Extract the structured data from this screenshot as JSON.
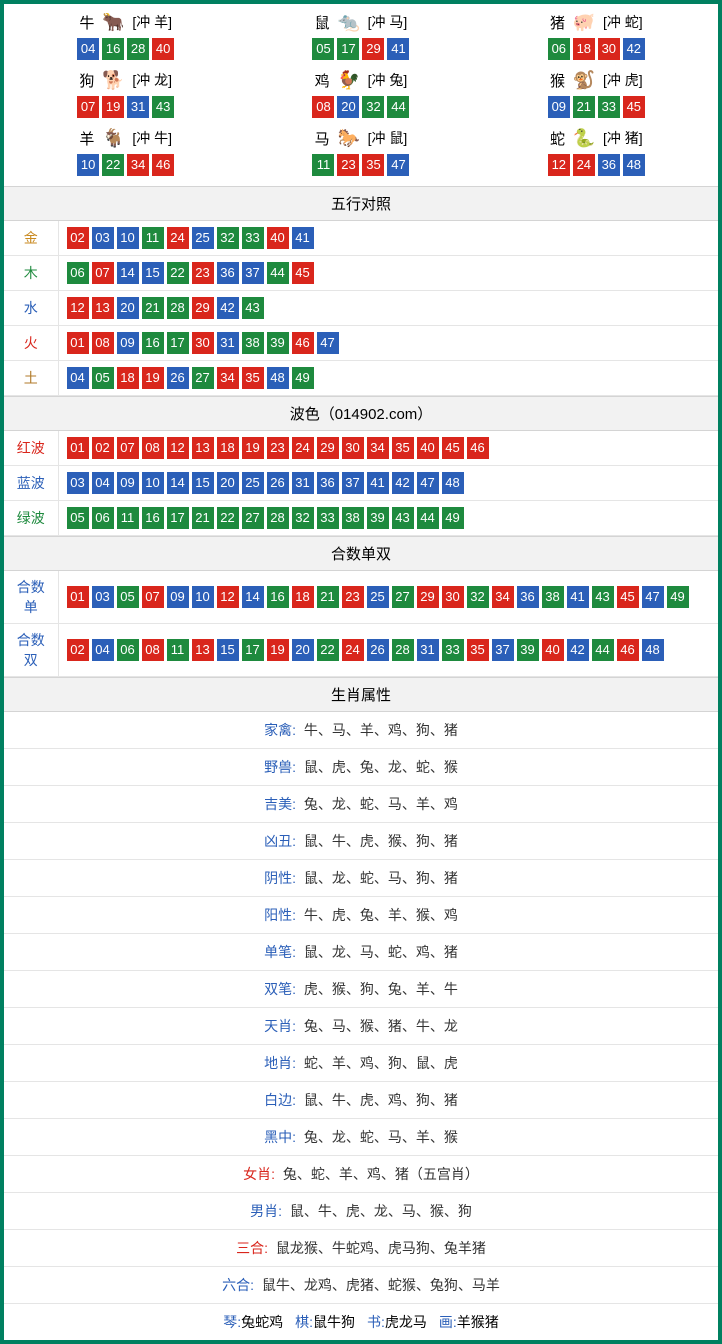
{
  "colors": {
    "red": "#d9261c",
    "blue": "#2b5fb8",
    "green": "#1e8a3e",
    "frame": "#008060",
    "header_bg": "#f2f2f2",
    "border": "#d4d4d4"
  },
  "zodiac": [
    {
      "name": "牛",
      "icon": "🐂",
      "icon_color": "#c94a3b",
      "conflict": "[冲 羊]",
      "nums": [
        {
          "v": "04",
          "c": "blue"
        },
        {
          "v": "16",
          "c": "green"
        },
        {
          "v": "28",
          "c": "green"
        },
        {
          "v": "40",
          "c": "red"
        }
      ]
    },
    {
      "name": "鼠",
      "icon": "🐀",
      "icon_color": "#4aa8d8",
      "conflict": "[冲 马]",
      "nums": [
        {
          "v": "05",
          "c": "green"
        },
        {
          "v": "17",
          "c": "green"
        },
        {
          "v": "29",
          "c": "red"
        },
        {
          "v": "41",
          "c": "blue"
        }
      ]
    },
    {
      "name": "猪",
      "icon": "🐖",
      "icon_color": "#e58aa0",
      "conflict": "[冲 蛇]",
      "nums": [
        {
          "v": "06",
          "c": "green"
        },
        {
          "v": "18",
          "c": "red"
        },
        {
          "v": "30",
          "c": "red"
        },
        {
          "v": "42",
          "c": "blue"
        }
      ]
    },
    {
      "name": "狗",
      "icon": "🐕",
      "icon_color": "#6aa6e0",
      "conflict": "[冲 龙]",
      "nums": [
        {
          "v": "07",
          "c": "red"
        },
        {
          "v": "19",
          "c": "red"
        },
        {
          "v": "31",
          "c": "blue"
        },
        {
          "v": "43",
          "c": "green"
        }
      ]
    },
    {
      "name": "鸡",
      "icon": "🐓",
      "icon_color": "#e0a030",
      "conflict": "[冲 兔]",
      "nums": [
        {
          "v": "08",
          "c": "red"
        },
        {
          "v": "20",
          "c": "blue"
        },
        {
          "v": "32",
          "c": "green"
        },
        {
          "v": "44",
          "c": "green"
        }
      ]
    },
    {
      "name": "猴",
      "icon": "🐒",
      "icon_color": "#c96a3b",
      "conflict": "[冲 虎]",
      "nums": [
        {
          "v": "09",
          "c": "blue"
        },
        {
          "v": "21",
          "c": "green"
        },
        {
          "v": "33",
          "c": "green"
        },
        {
          "v": "45",
          "c": "red"
        }
      ]
    },
    {
      "name": "羊",
      "icon": "🐐",
      "icon_color": "#d8b050",
      "conflict": "[冲 牛]",
      "nums": [
        {
          "v": "10",
          "c": "blue"
        },
        {
          "v": "22",
          "c": "green"
        },
        {
          "v": "34",
          "c": "red"
        },
        {
          "v": "46",
          "c": "red"
        }
      ]
    },
    {
      "name": "马",
      "icon": "🐎",
      "icon_color": "#c94a3b",
      "conflict": "[冲 鼠]",
      "nums": [
        {
          "v": "11",
          "c": "green"
        },
        {
          "v": "23",
          "c": "red"
        },
        {
          "v": "35",
          "c": "red"
        },
        {
          "v": "47",
          "c": "blue"
        }
      ]
    },
    {
      "name": "蛇",
      "icon": "🐍",
      "icon_color": "#3aa04a",
      "conflict": "[冲 猪]",
      "nums": [
        {
          "v": "12",
          "c": "red"
        },
        {
          "v": "24",
          "c": "red"
        },
        {
          "v": "36",
          "c": "blue"
        },
        {
          "v": "48",
          "c": "blue"
        }
      ]
    }
  ],
  "section_wuxing": "五行对照",
  "wuxing": [
    {
      "label": "金",
      "color": "#c98a20",
      "nums": [
        {
          "v": "02",
          "c": "red"
        },
        {
          "v": "03",
          "c": "blue"
        },
        {
          "v": "10",
          "c": "blue"
        },
        {
          "v": "11",
          "c": "green"
        },
        {
          "v": "24",
          "c": "red"
        },
        {
          "v": "25",
          "c": "blue"
        },
        {
          "v": "32",
          "c": "green"
        },
        {
          "v": "33",
          "c": "green"
        },
        {
          "v": "40",
          "c": "red"
        },
        {
          "v": "41",
          "c": "blue"
        }
      ]
    },
    {
      "label": "木",
      "color": "#1e8a3e",
      "nums": [
        {
          "v": "06",
          "c": "green"
        },
        {
          "v": "07",
          "c": "red"
        },
        {
          "v": "14",
          "c": "blue"
        },
        {
          "v": "15",
          "c": "blue"
        },
        {
          "v": "22",
          "c": "green"
        },
        {
          "v": "23",
          "c": "red"
        },
        {
          "v": "36",
          "c": "blue"
        },
        {
          "v": "37",
          "c": "blue"
        },
        {
          "v": "44",
          "c": "green"
        },
        {
          "v": "45",
          "c": "red"
        }
      ]
    },
    {
      "label": "水",
      "color": "#2b5fb8",
      "nums": [
        {
          "v": "12",
          "c": "red"
        },
        {
          "v": "13",
          "c": "red"
        },
        {
          "v": "20",
          "c": "blue"
        },
        {
          "v": "21",
          "c": "green"
        },
        {
          "v": "28",
          "c": "green"
        },
        {
          "v": "29",
          "c": "red"
        },
        {
          "v": "42",
          "c": "blue"
        },
        {
          "v": "43",
          "c": "green"
        }
      ]
    },
    {
      "label": "火",
      "color": "#d9261c",
      "nums": [
        {
          "v": "01",
          "c": "red"
        },
        {
          "v": "08",
          "c": "red"
        },
        {
          "v": "09",
          "c": "blue"
        },
        {
          "v": "16",
          "c": "green"
        },
        {
          "v": "17",
          "c": "green"
        },
        {
          "v": "30",
          "c": "red"
        },
        {
          "v": "31",
          "c": "blue"
        },
        {
          "v": "38",
          "c": "green"
        },
        {
          "v": "39",
          "c": "green"
        },
        {
          "v": "46",
          "c": "red"
        },
        {
          "v": "47",
          "c": "blue"
        }
      ]
    },
    {
      "label": "土",
      "color": "#b07a2a",
      "nums": [
        {
          "v": "04",
          "c": "blue"
        },
        {
          "v": "05",
          "c": "green"
        },
        {
          "v": "18",
          "c": "red"
        },
        {
          "v": "19",
          "c": "red"
        },
        {
          "v": "26",
          "c": "blue"
        },
        {
          "v": "27",
          "c": "green"
        },
        {
          "v": "34",
          "c": "red"
        },
        {
          "v": "35",
          "c": "red"
        },
        {
          "v": "48",
          "c": "blue"
        },
        {
          "v": "49",
          "c": "green"
        }
      ]
    }
  ],
  "section_bose": "波色（014902.com）",
  "bose": [
    {
      "label": "红波",
      "color": "#d9261c",
      "nums": [
        {
          "v": "01",
          "c": "red"
        },
        {
          "v": "02",
          "c": "red"
        },
        {
          "v": "07",
          "c": "red"
        },
        {
          "v": "08",
          "c": "red"
        },
        {
          "v": "12",
          "c": "red"
        },
        {
          "v": "13",
          "c": "red"
        },
        {
          "v": "18",
          "c": "red"
        },
        {
          "v": "19",
          "c": "red"
        },
        {
          "v": "23",
          "c": "red"
        },
        {
          "v": "24",
          "c": "red"
        },
        {
          "v": "29",
          "c": "red"
        },
        {
          "v": "30",
          "c": "red"
        },
        {
          "v": "34",
          "c": "red"
        },
        {
          "v": "35",
          "c": "red"
        },
        {
          "v": "40",
          "c": "red"
        },
        {
          "v": "45",
          "c": "red"
        },
        {
          "v": "46",
          "c": "red"
        }
      ]
    },
    {
      "label": "蓝波",
      "color": "#2b5fb8",
      "nums": [
        {
          "v": "03",
          "c": "blue"
        },
        {
          "v": "04",
          "c": "blue"
        },
        {
          "v": "09",
          "c": "blue"
        },
        {
          "v": "10",
          "c": "blue"
        },
        {
          "v": "14",
          "c": "blue"
        },
        {
          "v": "15",
          "c": "blue"
        },
        {
          "v": "20",
          "c": "blue"
        },
        {
          "v": "25",
          "c": "blue"
        },
        {
          "v": "26",
          "c": "blue"
        },
        {
          "v": "31",
          "c": "blue"
        },
        {
          "v": "36",
          "c": "blue"
        },
        {
          "v": "37",
          "c": "blue"
        },
        {
          "v": "41",
          "c": "blue"
        },
        {
          "v": "42",
          "c": "blue"
        },
        {
          "v": "47",
          "c": "blue"
        },
        {
          "v": "48",
          "c": "blue"
        }
      ]
    },
    {
      "label": "绿波",
      "color": "#1e8a3e",
      "nums": [
        {
          "v": "05",
          "c": "green"
        },
        {
          "v": "06",
          "c": "green"
        },
        {
          "v": "11",
          "c": "green"
        },
        {
          "v": "16",
          "c": "green"
        },
        {
          "v": "17",
          "c": "green"
        },
        {
          "v": "21",
          "c": "green"
        },
        {
          "v": "22",
          "c": "green"
        },
        {
          "v": "27",
          "c": "green"
        },
        {
          "v": "28",
          "c": "green"
        },
        {
          "v": "32",
          "c": "green"
        },
        {
          "v": "33",
          "c": "green"
        },
        {
          "v": "38",
          "c": "green"
        },
        {
          "v": "39",
          "c": "green"
        },
        {
          "v": "43",
          "c": "green"
        },
        {
          "v": "44",
          "c": "green"
        },
        {
          "v": "49",
          "c": "green"
        }
      ]
    }
  ],
  "section_heshu": "合数单双",
  "heshu": [
    {
      "label": "合数单",
      "color": "#2b5fb8",
      "nums": [
        {
          "v": "01",
          "c": "red"
        },
        {
          "v": "03",
          "c": "blue"
        },
        {
          "v": "05",
          "c": "green"
        },
        {
          "v": "07",
          "c": "red"
        },
        {
          "v": "09",
          "c": "blue"
        },
        {
          "v": "10",
          "c": "blue"
        },
        {
          "v": "12",
          "c": "red"
        },
        {
          "v": "14",
          "c": "blue"
        },
        {
          "v": "16",
          "c": "green"
        },
        {
          "v": "18",
          "c": "red"
        },
        {
          "v": "21",
          "c": "green"
        },
        {
          "v": "23",
          "c": "red"
        },
        {
          "v": "25",
          "c": "blue"
        },
        {
          "v": "27",
          "c": "green"
        },
        {
          "v": "29",
          "c": "red"
        },
        {
          "v": "30",
          "c": "red"
        },
        {
          "v": "32",
          "c": "green"
        },
        {
          "v": "34",
          "c": "red"
        },
        {
          "v": "36",
          "c": "blue"
        },
        {
          "v": "38",
          "c": "green"
        },
        {
          "v": "41",
          "c": "blue"
        },
        {
          "v": "43",
          "c": "green"
        },
        {
          "v": "45",
          "c": "red"
        },
        {
          "v": "47",
          "c": "blue"
        },
        {
          "v": "49",
          "c": "green"
        }
      ]
    },
    {
      "label": "合数双",
      "color": "#2b5fb8",
      "nums": [
        {
          "v": "02",
          "c": "red"
        },
        {
          "v": "04",
          "c": "blue"
        },
        {
          "v": "06",
          "c": "green"
        },
        {
          "v": "08",
          "c": "red"
        },
        {
          "v": "11",
          "c": "green"
        },
        {
          "v": "13",
          "c": "red"
        },
        {
          "v": "15",
          "c": "blue"
        },
        {
          "v": "17",
          "c": "green"
        },
        {
          "v": "19",
          "c": "red"
        },
        {
          "v": "20",
          "c": "blue"
        },
        {
          "v": "22",
          "c": "green"
        },
        {
          "v": "24",
          "c": "red"
        },
        {
          "v": "26",
          "c": "blue"
        },
        {
          "v": "28",
          "c": "green"
        },
        {
          "v": "31",
          "c": "blue"
        },
        {
          "v": "33",
          "c": "green"
        },
        {
          "v": "35",
          "c": "red"
        },
        {
          "v": "37",
          "c": "blue"
        },
        {
          "v": "39",
          "c": "green"
        },
        {
          "v": "40",
          "c": "red"
        },
        {
          "v": "42",
          "c": "blue"
        },
        {
          "v": "44",
          "c": "green"
        },
        {
          "v": "46",
          "c": "red"
        },
        {
          "v": "48",
          "c": "blue"
        }
      ]
    }
  ],
  "section_shuxing": "生肖属性",
  "attrs": [
    {
      "label": "家禽:",
      "val": "牛、马、羊、鸡、狗、猪"
    },
    {
      "label": "野兽:",
      "val": "鼠、虎、兔、龙、蛇、猴"
    },
    {
      "label": "吉美:",
      "val": "兔、龙、蛇、马、羊、鸡"
    },
    {
      "label": "凶丑:",
      "val": "鼠、牛、虎、猴、狗、猪"
    },
    {
      "label": "阴性:",
      "val": "鼠、龙、蛇、马、狗、猪"
    },
    {
      "label": "阳性:",
      "val": "牛、虎、兔、羊、猴、鸡"
    },
    {
      "label": "单笔:",
      "val": "鼠、龙、马、蛇、鸡、猪"
    },
    {
      "label": "双笔:",
      "val": "虎、猴、狗、兔、羊、牛"
    },
    {
      "label": "天肖:",
      "val": "兔、马、猴、猪、牛、龙"
    },
    {
      "label": "地肖:",
      "val": "蛇、羊、鸡、狗、鼠、虎"
    },
    {
      "label": "白边:",
      "val": "鼠、牛、虎、鸡、狗、猪"
    },
    {
      "label": "黑中:",
      "val": "兔、龙、蛇、马、羊、猴"
    },
    {
      "label": "女肖:",
      "val": "兔、蛇、羊、鸡、猪（五宫肖）",
      "red": true
    },
    {
      "label": "男肖:",
      "val": "鼠、牛、虎、龙、马、猴、狗"
    },
    {
      "label": "三合:",
      "val": "鼠龙猴、牛蛇鸡、虎马狗、兔羊猪",
      "red": true
    },
    {
      "label": "六合:",
      "val": "鼠牛、龙鸡、虎猪、蛇猴、兔狗、马羊"
    }
  ],
  "bottom": [
    {
      "l": "琴:",
      "v": "兔蛇鸡"
    },
    {
      "l": "棋:",
      "v": "鼠牛狗"
    },
    {
      "l": "书:",
      "v": "虎龙马"
    },
    {
      "l": "画:",
      "v": "羊猴猪"
    }
  ]
}
